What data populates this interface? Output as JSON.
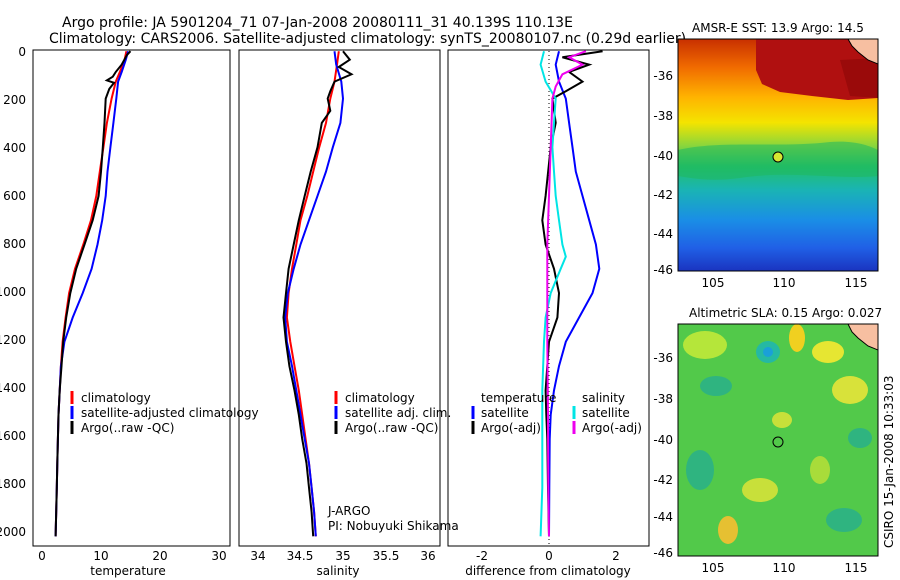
{
  "header": {
    "title_line1": "Argo profile: JA 5901204_71 07-Jan-2008 20080111_31 40.139S 110.13E",
    "title_line2": "Climatology: CARS2006. Satellite-adjusted climatology: synTS_20080107.nc (0.29d earlier)"
  },
  "credit": "CSIRO 15-Jan-2008 10:33:03",
  "colors": {
    "climatology": "#ff0000",
    "satellite": "#0000ff",
    "argo": "#000000",
    "cyan": "#00e5e5",
    "magenta": "#ee00ee",
    "land": "#f7bfa1"
  },
  "chart_data": [
    {
      "type": "line",
      "xlabel": "temperature",
      "xticks": [
        "0",
        "10",
        "20",
        "30"
      ],
      "xlim": [
        -2,
        32
      ],
      "ylim": [
        2040,
        0
      ],
      "yticks": [
        "0",
        "200",
        "400",
        "600",
        "800",
        "1000",
        "1200",
        "1400",
        "1600",
        "1800",
        "2000"
      ],
      "legend": [
        "climatology",
        "satellite-adjusted climatology",
        "Argo(..raw -QC)"
      ],
      "series": [
        {
          "name": "climatology",
          "color": "#ff0000",
          "points": [
            [
              14.3,
              5
            ],
            [
              14.0,
              40
            ],
            [
              13.2,
              90
            ],
            [
              12.5,
              130
            ],
            [
              11.8,
              200
            ],
            [
              11.0,
              300
            ],
            [
              10.4,
              400
            ],
            [
              9.8,
              500
            ],
            [
              9.2,
              600
            ],
            [
              8.3,
              700
            ],
            [
              7.0,
              800
            ],
            [
              5.6,
              900
            ],
            [
              4.6,
              1000
            ],
            [
              4.0,
              1100
            ],
            [
              3.5,
              1200
            ],
            [
              3.2,
              1300
            ],
            [
              3.0,
              1400
            ],
            [
              2.8,
              1500
            ],
            [
              2.7,
              1600
            ],
            [
              2.6,
              1700
            ],
            [
              2.5,
              1800
            ],
            [
              2.4,
              1900
            ],
            [
              2.3,
              2000
            ]
          ]
        },
        {
          "name": "satellite-adjusted climatology",
          "color": "#0000ff",
          "points": [
            [
              14.6,
              5
            ],
            [
              14.2,
              40
            ],
            [
              13.5,
              90
            ],
            [
              12.9,
              130
            ],
            [
              12.6,
              200
            ],
            [
              12.1,
              300
            ],
            [
              11.6,
              400
            ],
            [
              11.1,
              500
            ],
            [
              10.8,
              600
            ],
            [
              10.2,
              700
            ],
            [
              9.4,
              800
            ],
            [
              8.4,
              900
            ],
            [
              6.9,
              1000
            ],
            [
              5.2,
              1100
            ],
            [
              3.8,
              1200
            ],
            [
              3.2,
              1300
            ],
            [
              3.0,
              1400
            ],
            [
              2.8,
              1500
            ],
            [
              2.7,
              1600
            ],
            [
              2.6,
              1700
            ],
            [
              2.5,
              1800
            ],
            [
              2.4,
              1900
            ],
            [
              2.3,
              2000
            ]
          ]
        },
        {
          "name": "Argo(..raw -QC)",
          "color": "#000000",
          "points": [
            [
              15.0,
              5
            ],
            [
              14.4,
              20
            ],
            [
              13.5,
              60
            ],
            [
              12.5,
              90
            ],
            [
              12.0,
              110
            ],
            [
              11.0,
              125
            ],
            [
              12.2,
              135
            ],
            [
              11.4,
              160
            ],
            [
              10.8,
              200
            ],
            [
              10.6,
              300
            ],
            [
              10.3,
              400
            ],
            [
              10.0,
              500
            ],
            [
              9.6,
              600
            ],
            [
              8.6,
              700
            ],
            [
              7.2,
              800
            ],
            [
              5.8,
              900
            ],
            [
              4.8,
              1000
            ],
            [
              4.1,
              1100
            ],
            [
              3.6,
              1200
            ],
            [
              3.3,
              1300
            ],
            [
              3.0,
              1400
            ],
            [
              2.8,
              1500
            ],
            [
              2.7,
              1600
            ],
            [
              2.6,
              1700
            ],
            [
              2.5,
              1800
            ],
            [
              2.4,
              1900
            ],
            [
              2.3,
              2000
            ]
          ]
        }
      ]
    },
    {
      "type": "line",
      "xlabel": "salinity",
      "xticks": [
        "34",
        "34.5",
        "35",
        "35.5",
        "36"
      ],
      "xlim": [
        33.85,
        36.15
      ],
      "ylim": [
        2040,
        0
      ],
      "legend": [
        "climatology",
        "satellite adj. clim.",
        "Argo(..raw -QC)"
      ],
      "annotation": [
        "J-ARGO",
        "PI: Nobuyuki Shikama"
      ],
      "series": [
        {
          "name": "climatology",
          "color": "#ff0000",
          "points": [
            [
              34.95,
              5
            ],
            [
              34.93,
              60
            ],
            [
              34.9,
              130
            ],
            [
              34.85,
              200
            ],
            [
              34.8,
              300
            ],
            [
              34.72,
              400
            ],
            [
              34.65,
              500
            ],
            [
              34.58,
              600
            ],
            [
              34.5,
              700
            ],
            [
              34.45,
              800
            ],
            [
              34.4,
              900
            ],
            [
              34.36,
              1000
            ],
            [
              34.34,
              1100
            ],
            [
              34.38,
              1200
            ],
            [
              34.43,
              1300
            ],
            [
              34.48,
              1400
            ],
            [
              34.52,
              1500
            ],
            [
              34.56,
              1600
            ],
            [
              34.6,
              1700
            ],
            [
              34.63,
              1800
            ],
            [
              34.66,
              1900
            ],
            [
              34.68,
              2000
            ]
          ]
        },
        {
          "name": "satellite adj. clim.",
          "color": "#0000ff",
          "points": [
            [
              34.9,
              5
            ],
            [
              34.92,
              60
            ],
            [
              34.98,
              130
            ],
            [
              35.0,
              200
            ],
            [
              34.97,
              300
            ],
            [
              34.88,
              400
            ],
            [
              34.8,
              500
            ],
            [
              34.7,
              600
            ],
            [
              34.6,
              700
            ],
            [
              34.5,
              800
            ],
            [
              34.42,
              900
            ],
            [
              34.35,
              1000
            ],
            [
              34.32,
              1100
            ],
            [
              34.34,
              1200
            ],
            [
              34.4,
              1300
            ],
            [
              34.45,
              1400
            ],
            [
              34.5,
              1500
            ],
            [
              34.55,
              1600
            ],
            [
              34.6,
              1700
            ],
            [
              34.63,
              1800
            ],
            [
              34.66,
              1900
            ],
            [
              34.68,
              2000
            ]
          ]
        },
        {
          "name": "Argo(..raw -QC)",
          "color": "#000000",
          "points": [
            [
              35.0,
              5
            ],
            [
              35.08,
              40
            ],
            [
              34.95,
              70
            ],
            [
              35.1,
              100
            ],
            [
              34.9,
              130
            ],
            [
              34.85,
              170
            ],
            [
              34.82,
              200
            ],
            [
              34.85,
              250
            ],
            [
              34.75,
              300
            ],
            [
              34.7,
              400
            ],
            [
              34.62,
              500
            ],
            [
              34.55,
              600
            ],
            [
              34.48,
              700
            ],
            [
              34.42,
              800
            ],
            [
              34.36,
              900
            ],
            [
              34.33,
              1000
            ],
            [
              34.3,
              1100
            ],
            [
              34.33,
              1200
            ],
            [
              34.37,
              1300
            ],
            [
              34.43,
              1400
            ],
            [
              34.48,
              1500
            ],
            [
              34.52,
              1600
            ],
            [
              34.57,
              1700
            ],
            [
              34.6,
              1800
            ],
            [
              34.63,
              1900
            ],
            [
              34.65,
              2000
            ]
          ]
        }
      ]
    },
    {
      "type": "line",
      "xlabel": "difference from climatology",
      "xticks": [
        "-2",
        "0",
        "2"
      ],
      "xlim": [
        -3.1,
        3.1
      ],
      "ylim": [
        2040,
        0
      ],
      "legend_titles": [
        "temperature",
        "salinity"
      ],
      "legend": [
        "satellite",
        "Argo(-adj)",
        "satellite",
        "Argo(-adj)"
      ],
      "series": [
        {
          "name": "satellite",
          "color": "#0000ff",
          "points": [
            [
              0.3,
              5
            ],
            [
              0.2,
              60
            ],
            [
              0.3,
              130
            ],
            [
              0.5,
              200
            ],
            [
              0.6,
              300
            ],
            [
              0.7,
              400
            ],
            [
              0.8,
              500
            ],
            [
              1.0,
              600
            ],
            [
              1.2,
              700
            ],
            [
              1.4,
              800
            ],
            [
              1.5,
              900
            ],
            [
              1.3,
              1000
            ],
            [
              0.9,
              1100
            ],
            [
              0.5,
              1200
            ],
            [
              0.3,
              1300
            ],
            [
              0.15,
              1400
            ],
            [
              0.05,
              1500
            ],
            [
              0.02,
              1600
            ],
            [
              0.01,
              1800
            ],
            [
              0.0,
              2000
            ]
          ]
        },
        {
          "name": "Argo(-adj)",
          "color": "#000000",
          "points": [
            [
              1.6,
              5
            ],
            [
              0.4,
              30
            ],
            [
              1.2,
              60
            ],
            [
              0.6,
              90
            ],
            [
              1.0,
              130
            ],
            [
              0.5,
              170
            ],
            [
              0.1,
              200
            ],
            [
              0.2,
              300
            ],
            [
              0.05,
              400
            ],
            [
              -0.1,
              600
            ],
            [
              -0.2,
              700
            ],
            [
              -0.1,
              800
            ],
            [
              0.15,
              900
            ],
            [
              0.3,
              1000
            ],
            [
              0.25,
              1100
            ],
            [
              0.0,
              1200
            ],
            [
              -0.05,
              1300
            ],
            [
              -0.1,
              1400
            ],
            [
              -0.08,
              1500
            ],
            [
              -0.05,
              1600
            ],
            [
              -0.03,
              1800
            ],
            [
              0.0,
              2000
            ]
          ]
        },
        {
          "name": "satellite",
          "color": "#00e5e5",
          "points": [
            [
              -0.15,
              5
            ],
            [
              -0.25,
              60
            ],
            [
              -0.1,
              130
            ],
            [
              0.2,
              200
            ],
            [
              0.15,
              300
            ],
            [
              0.1,
              400
            ],
            [
              0.15,
              500
            ],
            [
              0.2,
              600
            ],
            [
              0.3,
              700
            ],
            [
              0.4,
              800
            ],
            [
              0.5,
              850
            ],
            [
              0.35,
              900
            ],
            [
              0.05,
              1000
            ],
            [
              -0.1,
              1100
            ],
            [
              -0.15,
              1200
            ],
            [
              -0.2,
              1400
            ],
            [
              -0.2,
              1600
            ],
            [
              -0.2,
              1800
            ],
            [
              -0.25,
              2000
            ]
          ]
        },
        {
          "name": "Argo(-adj)",
          "color": "#ee00ee",
          "points": [
            [
              1.1,
              5
            ],
            [
              0.6,
              30
            ],
            [
              1.0,
              60
            ],
            [
              0.4,
              100
            ],
            [
              0.2,
              150
            ],
            [
              0.1,
              200
            ],
            [
              0.05,
              400
            ],
            [
              0.0,
              600
            ],
            [
              -0.05,
              800
            ],
            [
              -0.05,
              1000
            ],
            [
              -0.05,
              1200
            ],
            [
              -0.03,
              1500
            ],
            [
              -0.02,
              1800
            ],
            [
              0.0,
              2000
            ]
          ]
        }
      ]
    }
  ],
  "maps": [
    {
      "title": "AMSR-E SST: 13.9 Argo: 14.5",
      "xticks": [
        "105",
        "110",
        "115"
      ],
      "yticks": [
        "-36",
        "-38",
        "-40",
        "-42",
        "-44",
        "-46"
      ],
      "marker": "Argo profile location"
    },
    {
      "title": "Altimetric SLA: 0.15 Argo: 0.027",
      "xticks": [
        "105",
        "110",
        "115"
      ],
      "yticks": [
        "-36",
        "-38",
        "-40",
        "-42",
        "-44",
        "-46"
      ],
      "marker": "Argo profile location"
    }
  ]
}
